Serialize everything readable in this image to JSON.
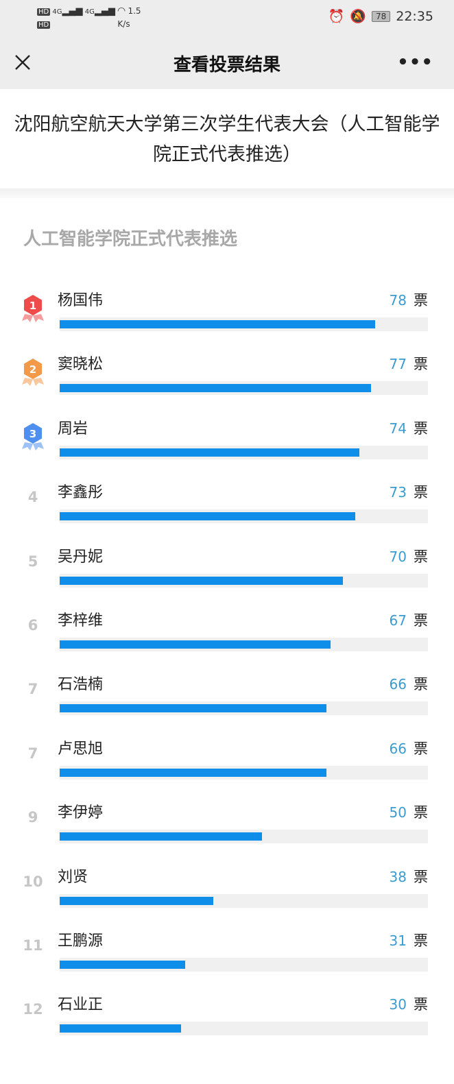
{
  "status_bar": {
    "network_speed": "1.5",
    "network_unit": "K/s",
    "signal_1": "4G",
    "signal_2": "4G",
    "hd_1": "HD",
    "hd_2": "HD",
    "battery": "78",
    "time": "22:35"
  },
  "nav": {
    "title": "查看投票结果",
    "close_icon": "close-icon",
    "more_label": "•••"
  },
  "poll_title": "沈阳航空航天大学第三次学生代表大会（人工智能学院正式代表推选）",
  "section_title": "人工智能学院正式代表推选",
  "colors": {
    "bar": "#0e8ee9",
    "vote_number": "#3a9bd0",
    "medal_1": "#ee4b4b",
    "medal_2": "#f29a4a",
    "medal_3": "#4f8ff0"
  },
  "vote_unit": "票",
  "candidates": [
    {
      "rank": "1",
      "name": "杨国伟",
      "votes": 78,
      "fill_fraction": 0.857
    },
    {
      "rank": "2",
      "name": "窦晓松",
      "votes": 77,
      "fill_fraction": 0.846
    },
    {
      "rank": "3",
      "name": "周岩",
      "votes": 74,
      "fill_fraction": 0.813
    },
    {
      "rank": "4",
      "name": "李鑫彤",
      "votes": 73,
      "fill_fraction": 0.802
    },
    {
      "rank": "5",
      "name": "吴丹妮",
      "votes": 70,
      "fill_fraction": 0.769
    },
    {
      "rank": "6",
      "name": "李梓维",
      "votes": 67,
      "fill_fraction": 0.736
    },
    {
      "rank": "7",
      "name": "石浩楠",
      "votes": 66,
      "fill_fraction": 0.725
    },
    {
      "rank": "7",
      "name": "卢思旭",
      "votes": 66,
      "fill_fraction": 0.725
    },
    {
      "rank": "9",
      "name": "李伊婷",
      "votes": 50,
      "fill_fraction": 0.549
    },
    {
      "rank": "10",
      "name": "刘贤",
      "votes": 38,
      "fill_fraction": 0.418
    },
    {
      "rank": "11",
      "name": "王鹏源",
      "votes": 31,
      "fill_fraction": 0.341
    },
    {
      "rank": "12",
      "name": "石业正",
      "votes": 30,
      "fill_fraction": 0.33
    }
  ]
}
